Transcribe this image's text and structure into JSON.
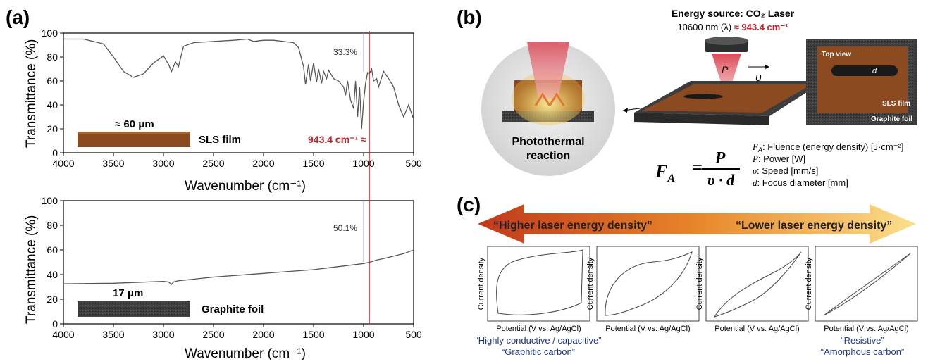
{
  "panels": {
    "a": "(a)",
    "b": "(b)",
    "c": "(c)"
  },
  "chart_data": [
    {
      "type": "line",
      "xlabel": "Wavenumber (cm⁻¹)",
      "ylabel": "Transmittance (%)",
      "xlim": [
        4000,
        500
      ],
      "ylim": [
        0,
        100
      ],
      "xticks": [
        "4000",
        "3500",
        "3000",
        "2500",
        "2000",
        "1500",
        "1000",
        "500"
      ],
      "yticks": [
        "0",
        "20",
        "40",
        "60",
        "80",
        "100"
      ],
      "x": [
        4000,
        3800,
        3600,
        3500,
        3400,
        3300,
        3200,
        3100,
        3000,
        2950,
        2920,
        2880,
        2850,
        2800,
        2700,
        2500,
        2300,
        2160,
        2100,
        2000,
        1900,
        1800,
        1700,
        1650,
        1600,
        1580,
        1550,
        1530,
        1500,
        1470,
        1450,
        1420,
        1400,
        1370,
        1350,
        1300,
        1250,
        1200,
        1180,
        1160,
        1130,
        1100,
        1080,
        1060,
        1040,
        1020,
        1000,
        980,
        960,
        943,
        920,
        900,
        870,
        850,
        800,
        750,
        700,
        650,
        600,
        550,
        500
      ],
      "y": [
        95,
        95,
        91,
        80,
        68,
        63,
        66,
        75,
        81,
        74,
        68,
        76,
        72,
        89,
        92,
        93,
        94,
        95,
        93,
        94,
        94,
        93,
        92,
        88,
        72,
        57,
        74,
        60,
        75,
        59,
        70,
        58,
        68,
        62,
        69,
        62,
        60,
        55,
        48,
        60,
        44,
        37,
        60,
        30,
        55,
        20,
        43,
        58,
        67,
        66,
        70,
        60,
        62,
        55,
        68,
        62,
        55,
        40,
        30,
        40,
        28
      ],
      "annotations": {
        "gap": "33.3%",
        "peak": "943.4 cm⁻¹ ≈"
      },
      "sample_label": "SLS film",
      "scale_label": "≈ 60 μm"
    },
    {
      "type": "line",
      "xlabel": "Wavenumber (cm⁻¹)",
      "ylabel": "Transmittance (%)",
      "xlim": [
        4000,
        500
      ],
      "ylim": [
        0,
        100
      ],
      "xticks": [
        "4000",
        "3500",
        "3000",
        "2500",
        "2000",
        "1500",
        "1000",
        "500"
      ],
      "yticks": [
        "0",
        "20",
        "40",
        "60",
        "80",
        "100"
      ],
      "x": [
        4000,
        3500,
        3000,
        2950,
        2920,
        2900,
        2850,
        2500,
        2000,
        1500,
        1200,
        1000,
        943,
        900,
        860,
        800,
        700,
        600,
        500
      ],
      "y": [
        32.5,
        33,
        34.5,
        34,
        32,
        34,
        35,
        38,
        41,
        44,
        47,
        49,
        50,
        51,
        52,
        53,
        55,
        57,
        60
      ],
      "annotations": {
        "gap": "50.1%"
      },
      "sample_label": "Graphite foil",
      "scale_label": "17 μm"
    },
    {
      "type": "line",
      "xlabel": "Potential (V vs. Ag/AgCl)",
      "ylabel": "Current density",
      "subplots": 4,
      "top_arrow_left": "“Higher laser energy density”",
      "top_arrow_right": "“Lower laser energy density”",
      "bottom_left": [
        "“Highly conductive / capacitive”",
        "“Graphitic carbon”"
      ],
      "bottom_right": [
        "“Resistive”",
        "“Amorphous carbon”"
      ]
    }
  ],
  "panel_b": {
    "source_title": "Energy source: CO₂ Laser",
    "wavelength_prefix": "10600 nm (λ) ",
    "wavelength_value": "≈ 943.4 cm⁻¹",
    "power_symbol": "P",
    "speed_symbol": "υ",
    "d_symbol": "d",
    "inset_title": "Top view",
    "inset_film": "SLS film",
    "inset_foil": "Graphite foil",
    "reaction_line1": "Photothermal",
    "reaction_line2": "reaction",
    "eq_lhs": "F",
    "eq_sub": "A",
    "eq_num": "P",
    "eq_den": "υ · d",
    "legend": [
      {
        "sym": "F",
        "sub": "A",
        "text": ": Fluence (energy density) [J·cm⁻²]"
      },
      {
        "sym": "P",
        "sub": "",
        "text": ": Power [W]"
      },
      {
        "sym": "υ",
        "sub": "",
        "text": ": Speed [mm/s]"
      },
      {
        "sym": "d",
        "sub": "",
        "text": ": Focus diameter [mm]"
      }
    ]
  },
  "colors": {
    "red_line": "#c0262d",
    "film": "#8b4a20",
    "foil": "#3a3a3a",
    "curve": "#444444",
    "blue_text": "#1f3a8a"
  }
}
